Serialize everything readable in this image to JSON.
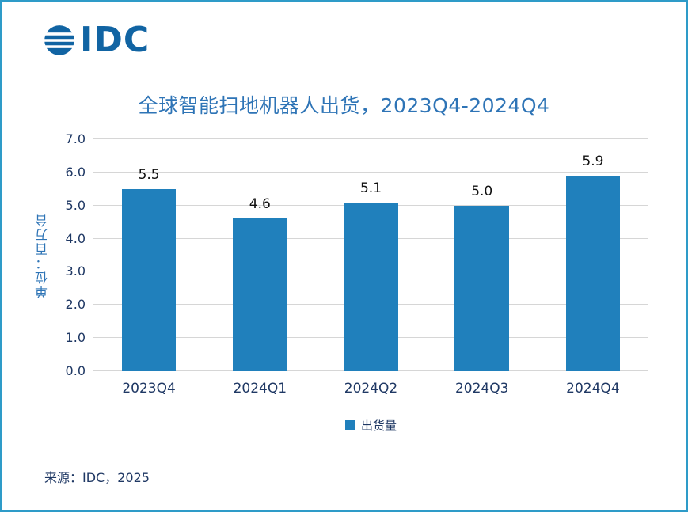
{
  "logo": {
    "text": "IDC"
  },
  "chart_data": {
    "type": "bar",
    "title": "全球智能扫地机器人出货，2023Q4-2024Q4",
    "categories": [
      "2023Q4",
      "2024Q1",
      "2024Q2",
      "2024Q3",
      "2024Q4"
    ],
    "values": [
      5.5,
      4.6,
      5.1,
      5.0,
      5.9
    ],
    "value_labels": [
      "5.5",
      "4.6",
      "5.1",
      "5.0",
      "5.9"
    ],
    "ylabel": "单位：百万台",
    "xlabel": "",
    "ylim": [
      0,
      7
    ],
    "ytick_labels": [
      "0.0",
      "1.0",
      "2.0",
      "3.0",
      "4.0",
      "5.0",
      "6.0",
      "7.0"
    ],
    "grid": true,
    "legend": [
      "出货量"
    ],
    "legend_position": "bottom",
    "bar_color": "#2080bc"
  },
  "source": "来源：IDC，2025"
}
